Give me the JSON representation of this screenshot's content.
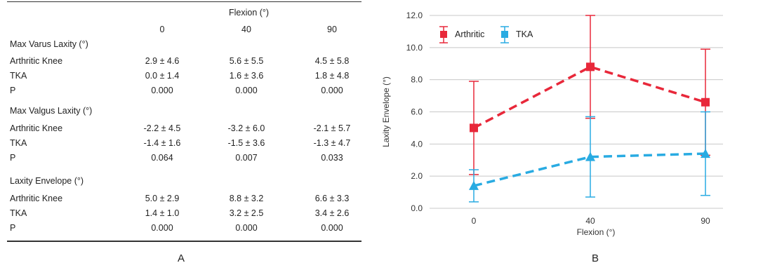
{
  "table": {
    "header": "Flexion (°)",
    "columns": [
      "0",
      "40",
      "90"
    ],
    "sections": [
      {
        "title": "Max Varus Laxity (°)",
        "rows": [
          {
            "label": "Arthritic Knee",
            "values": [
              "2.9 ± 4.6",
              "5.6 ± 5.5",
              "4.5 ± 5.8"
            ]
          },
          {
            "label": "TKA",
            "values": [
              "0.0 ± 1.4",
              "1.6 ± 3.6",
              "1.8 ± 4.8"
            ]
          },
          {
            "label": "P",
            "values": [
              "0.000",
              "0.000",
              "0.000"
            ]
          }
        ]
      },
      {
        "title": "Max Valgus Laxity (°)",
        "rows": [
          {
            "label": "Arthritic Knee",
            "values": [
              "-2.2 ± 4.5",
              "-3.2 ± 6.0",
              "-2.1 ± 5.7"
            ]
          },
          {
            "label": "TKA",
            "values": [
              "-1.4 ± 1.6",
              "-1.5 ± 3.6",
              "-1.3 ± 4.7"
            ]
          },
          {
            "label": "P",
            "values": [
              "0.064",
              "0.007",
              "0.033"
            ]
          }
        ]
      },
      {
        "title": "Laxity Envelope (°)",
        "rows": [
          {
            "label": "Arthritic Knee",
            "values": [
              "5.0 ± 2.9",
              "8.8 ± 3.2",
              "6.6 ± 3.3"
            ]
          },
          {
            "label": "TKA",
            "values": [
              "1.4 ± 1.0",
              "3.2 ± 2.5",
              "3.4 ± 2.6"
            ]
          },
          {
            "label": "P",
            "values": [
              "0.000",
              "0.000",
              "0.000"
            ]
          }
        ]
      }
    ]
  },
  "panel_labels": {
    "a": "A",
    "b": "B"
  },
  "chart_data": {
    "type": "line",
    "xlabel": "Flexion (°)",
    "ylabel": "Laxity Envelope (°)",
    "categories": [
      "0",
      "40",
      "90"
    ],
    "ylim": [
      0,
      12
    ],
    "yticks": [
      "0.0",
      "2.0",
      "4.0",
      "6.0",
      "8.0",
      "10.0",
      "12.0"
    ],
    "grid": "horizontal",
    "legend_position": "top-left",
    "series": [
      {
        "name": "Arthritic",
        "color": "#e8283a",
        "marker": "square",
        "line": "dashed",
        "values": [
          5.0,
          8.8,
          6.6
        ],
        "error": [
          2.9,
          3.2,
          3.3
        ]
      },
      {
        "name": "TKA",
        "color": "#29abe2",
        "marker": "triangle",
        "line": "dashed",
        "values": [
          1.4,
          3.2,
          3.4
        ],
        "error": [
          1.0,
          2.5,
          2.6
        ]
      }
    ]
  }
}
